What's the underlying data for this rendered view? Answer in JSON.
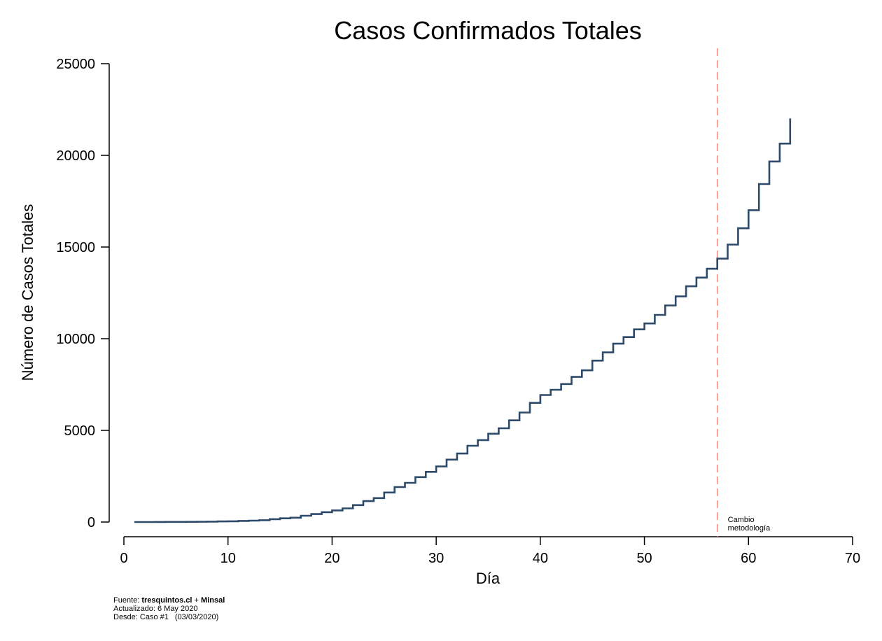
{
  "chart_data": {
    "type": "line",
    "step": true,
    "title": "Casos Confirmados Totales",
    "xlabel": "Día",
    "ylabel": "Número de Casos Totales",
    "xlim": [
      0,
      70
    ],
    "ylim": [
      0,
      25000
    ],
    "xticks": [
      "0",
      "10",
      "20",
      "30",
      "40",
      "50",
      "60",
      "70"
    ],
    "yticks": [
      "0",
      "5000",
      "10000",
      "15000",
      "20000",
      "25000"
    ],
    "grid": false,
    "line_color": "#2e4a6b",
    "series": [
      {
        "x": [
          1,
          2,
          3,
          4,
          5,
          6,
          7,
          8,
          9,
          10,
          11,
          12,
          13,
          14,
          15,
          16,
          17,
          18,
          19,
          20,
          21,
          22,
          23,
          24,
          25,
          26,
          27,
          28,
          29,
          30,
          31,
          32,
          33,
          34,
          35,
          36,
          37,
          38,
          39,
          40,
          41,
          42,
          43,
          44,
          45,
          46,
          47,
          48,
          49,
          50,
          51,
          52,
          53,
          54,
          55,
          56,
          57,
          58,
          59,
          60,
          61,
          62,
          63,
          64
        ],
        "values": [
          1,
          1,
          4,
          7,
          8,
          13,
          17,
          23,
          33,
          43,
          61,
          75,
          98,
          155,
          201,
          238,
          342,
          434,
          537,
          632,
          746,
          922,
          1142,
          1306,
          1610,
          1909,
          2139,
          2449,
          2738,
          3031,
          3404,
          3737,
          4161,
          4471,
          4815,
          5116,
          5546,
          5972,
          6501,
          6927,
          7213,
          7525,
          7917,
          8273,
          8807,
          9252,
          9730,
          10088,
          10507,
          10832,
          11296,
          11812,
          12306,
          12858,
          13331,
          13813,
          14365,
          15135,
          16023,
          17008,
          18435,
          19663,
          20643,
          22016
        ]
      }
    ],
    "annotations": [
      {
        "type": "vline",
        "x": 57,
        "color": "#f08a7e",
        "text_lines": [
          "Cambio",
          "metodología"
        ]
      }
    ]
  },
  "footer": {
    "source_prefix": "Fuente: ",
    "source_site": "tresquintos.cl",
    "source_join": " + ",
    "source_org": "Minsal",
    "updated": "Actualizado: 6 May 2020",
    "since_label": "Desde: Caso #1",
    "since_date": "(03/03/2020)"
  }
}
